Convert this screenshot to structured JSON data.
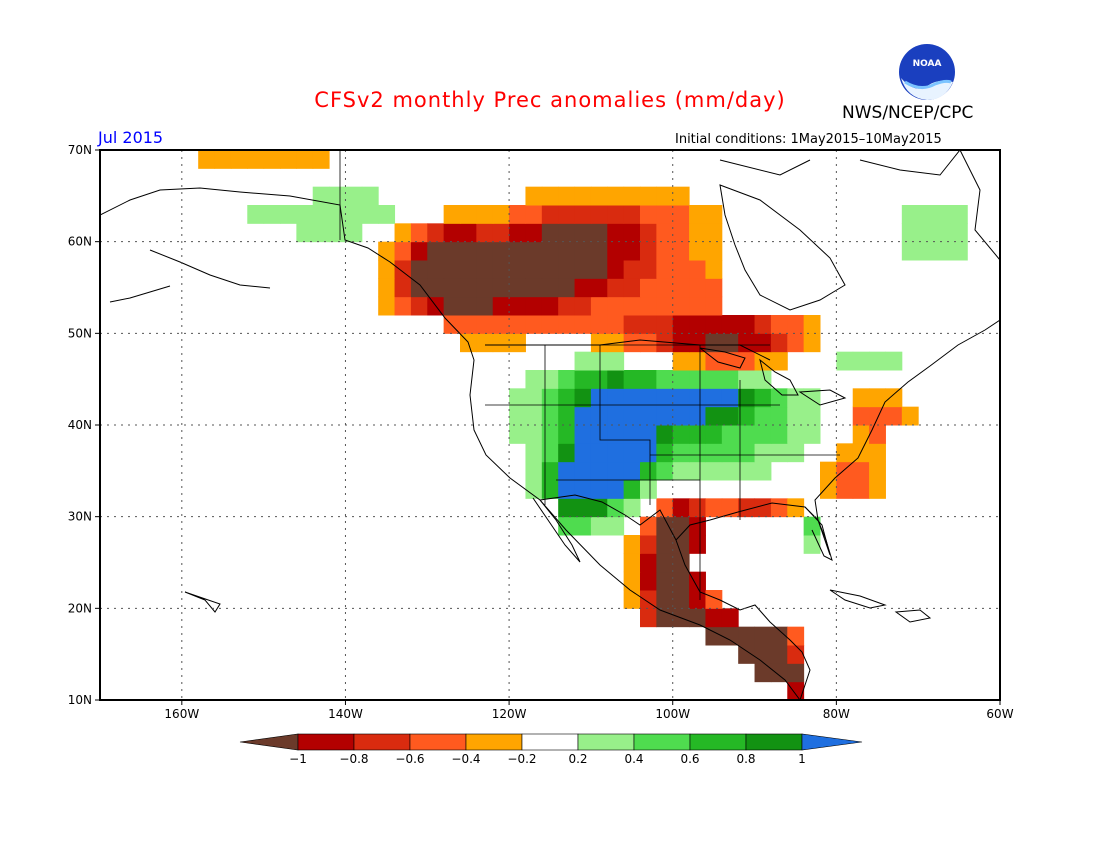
{
  "header": {
    "title": "CFSv2 monthly Prec anomalies (mm/day)",
    "agency": "NWS/NCEP/CPC",
    "logo_text": "NOAA",
    "month": "Jul 2015",
    "initial_conditions": "Initial conditions: 1May2015–10May2015"
  },
  "map": {
    "lat_labels": [
      "70N",
      "60N",
      "50N",
      "40N",
      "30N",
      "20N",
      "10N"
    ],
    "lon_labels": [
      "160W",
      "140W",
      "120W",
      "100W",
      "80W",
      "60W"
    ],
    "extent": {
      "lon": [
        -170,
        -60
      ],
      "lat": [
        10,
        70
      ]
    }
  },
  "legend": {
    "labels": [
      "−1",
      "−0.8",
      "−0.6",
      "−0.4",
      "−0.2",
      "0.2",
      "0.4",
      "0.6",
      "0.8",
      "1"
    ],
    "colors": [
      "#6b3a2a",
      "#b30000",
      "#d92b0f",
      "#ff5a1f",
      "#ffa500",
      "#ffffff",
      "#98f08a",
      "#4fdc4f",
      "#25b825",
      "#129212",
      "#1f6fe0"
    ]
  }
}
